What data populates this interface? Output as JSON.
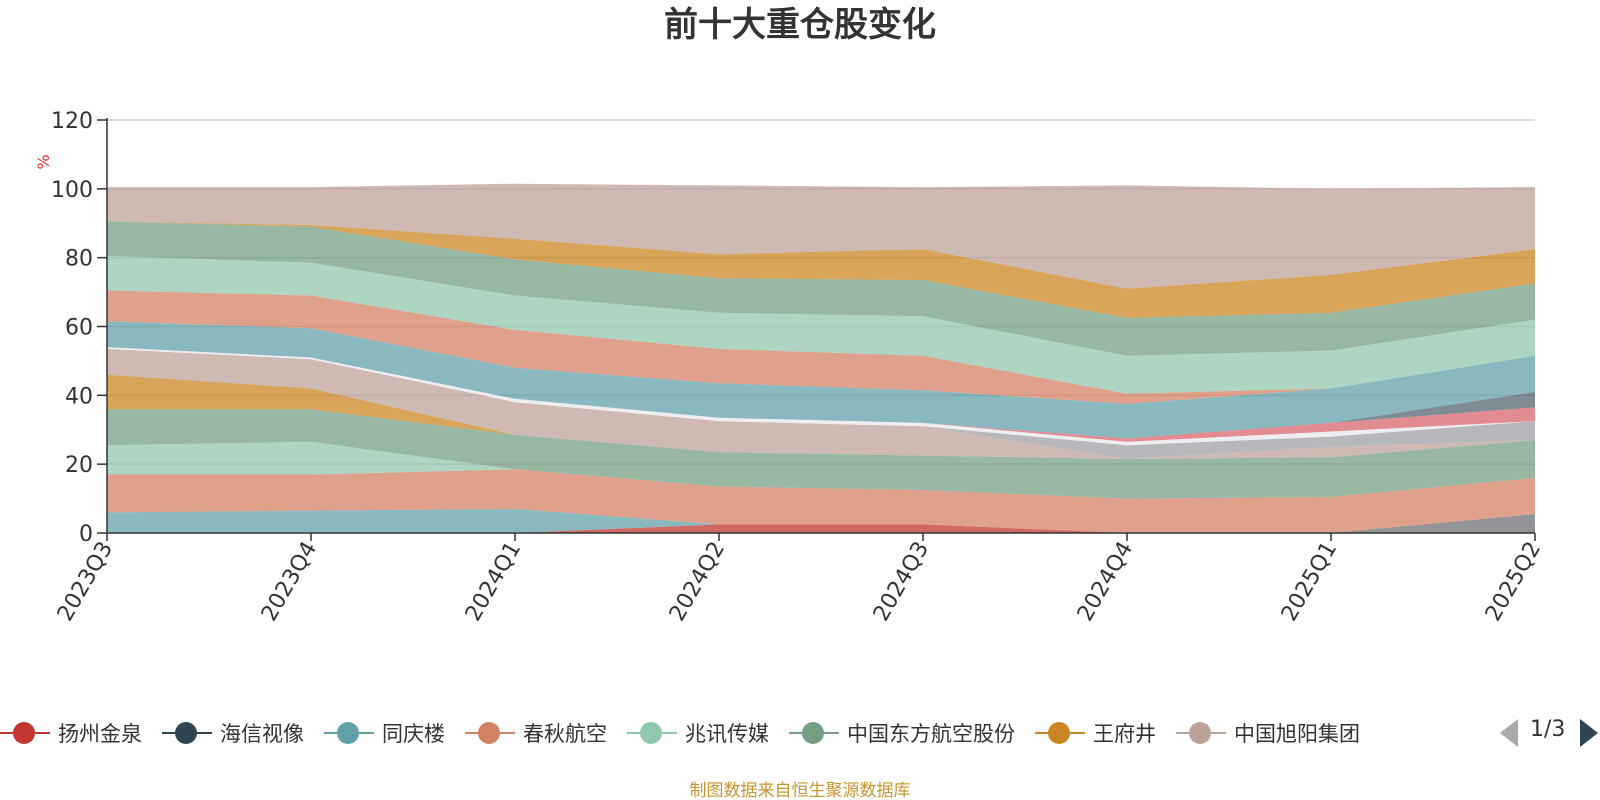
{
  "title": "前十大重仓股变化",
  "source_note": "制图数据来自恒生聚源数据库",
  "legend": {
    "items": [
      {
        "label": "扬州金泉",
        "color": "#c23531"
      },
      {
        "label": "海信视像",
        "color": "#2f4554"
      },
      {
        "label": "同庆楼",
        "color": "#61a0a8"
      },
      {
        "label": "春秋航空",
        "color": "#d48265"
      },
      {
        "label": "兆讯传媒",
        "color": "#91c7ae"
      },
      {
        "label": "中国东方航空股份",
        "color": "#749f83"
      },
      {
        "label": "王府井",
        "color": "#ca8622"
      },
      {
        "label": "中国旭阳集团",
        "color": "#bda29a"
      }
    ],
    "page": "1/3"
  },
  "chart_data": {
    "type": "area",
    "stacked": true,
    "x": [
      "2023Q3",
      "2023Q4",
      "2024Q1",
      "2024Q2",
      "2024Q3",
      "2024Q4",
      "2025Q1",
      "2025Q2"
    ],
    "ylabel": "%",
    "ylim": [
      0,
      120
    ],
    "yticks": [
      0,
      20,
      40,
      60,
      80,
      100,
      120
    ],
    "grid": true,
    "legend_position": "bottom",
    "series": [
      {
        "name": "",
        "color": "#6e7074",
        "values": [
          0,
          0,
          0,
          0,
          0,
          0,
          0,
          5.5
        ]
      },
      {
        "name": "",
        "color": "#d0e0a0",
        "values": [
          0,
          0,
          0,
          0,
          0,
          0,
          0,
          0
        ]
      },
      {
        "name": "",
        "color": "#c23531",
        "values": [
          0,
          0,
          0,
          2.5,
          2.5,
          0,
          0,
          0
        ]
      },
      {
        "name": "",
        "color": "#61a0a8",
        "values": [
          6,
          6.5,
          7,
          0,
          0,
          0,
          0,
          0
        ]
      },
      {
        "name": "",
        "color": "#d48265",
        "values": [
          11,
          10.5,
          11.5,
          11,
          10,
          10,
          10.5,
          10.5
        ]
      },
      {
        "name": "",
        "color": "#91c7ae",
        "values": [
          8.5,
          9.5,
          0,
          0,
          0,
          0,
          0,
          0
        ]
      },
      {
        "name": "",
        "color": "#749f83",
        "values": [
          10.5,
          9.5,
          10,
          10,
          10,
          11.5,
          11.5,
          11
        ]
      },
      {
        "name": "",
        "color": "#ca8622",
        "values": [
          10,
          6,
          0,
          0,
          0,
          0,
          0,
          0
        ]
      },
      {
        "name": "",
        "color": "#bda29a",
        "values": [
          7.5,
          8.5,
          9.5,
          9,
          8.5,
          0,
          3,
          0
        ]
      },
      {
        "name": "",
        "color": "#9fa0a5",
        "values": [
          0,
          0,
          0,
          0,
          0,
          4,
          3,
          5.5
        ]
      },
      {
        "name": "",
        "color": "#e8e8ec",
        "values": [
          0.5,
          0.5,
          1,
          1,
          1,
          1,
          1.5,
          0
        ]
      },
      {
        "name": "",
        "color": "#d9646e",
        "values": [
          0,
          0,
          0,
          0,
          0,
          1,
          2.5,
          4
        ]
      },
      {
        "name": "",
        "color": "#546570",
        "values": [
          0,
          0,
          0,
          0,
          0,
          0,
          0,
          4.5
        ]
      },
      {
        "name": "",
        "color": "#61a0a8",
        "values": [
          7.5,
          8.5,
          9,
          10,
          9.5,
          10,
          10,
          10.5
        ]
      },
      {
        "name": "",
        "color": "#d48265",
        "values": [
          9,
          9.5,
          11,
          10,
          10,
          3,
          0,
          0
        ]
      },
      {
        "name": "",
        "color": "#91c7ae",
        "values": [
          10,
          9.5,
          10,
          10.5,
          11.5,
          11,
          11,
          10.5
        ]
      },
      {
        "name": "",
        "color": "#749f83",
        "values": [
          10,
          10.5,
          10.5,
          10,
          10.5,
          11,
          11,
          10.5
        ]
      },
      {
        "name": "",
        "color": "#ca8622",
        "values": [
          0,
          0.5,
          6,
          7,
          9,
          8.5,
          11,
          10
        ]
      },
      {
        "name": "",
        "color": "#bda29a",
        "values": [
          10,
          11,
          16,
          20,
          18,
          30,
          25,
          18
        ]
      }
    ]
  }
}
